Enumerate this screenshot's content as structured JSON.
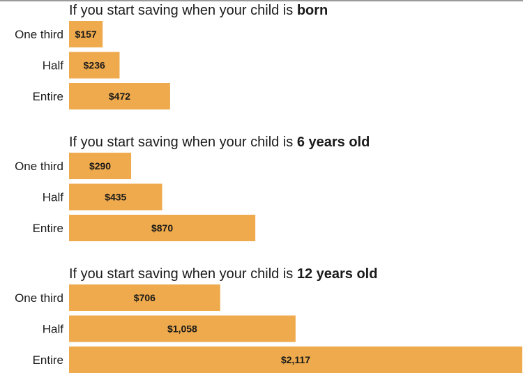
{
  "colors": {
    "bar": "#eeaa4c",
    "text": "#1a1a1a"
  },
  "chart_data": [
    {
      "type": "bar",
      "orientation": "horizontal",
      "title_prefix": "If you start saving when your child is ",
      "title_emphasis": "born",
      "categories": [
        "One third",
        "Half",
        "Entire"
      ],
      "values": [
        157,
        236,
        472
      ],
      "value_labels": [
        "$157",
        "$236",
        "$472"
      ]
    },
    {
      "type": "bar",
      "orientation": "horizontal",
      "title_prefix": "If you start saving when your child is ",
      "title_emphasis": "6 years old",
      "categories": [
        "One third",
        "Half",
        "Entire"
      ],
      "values": [
        290,
        435,
        870
      ],
      "value_labels": [
        "$290",
        "$435",
        "$870"
      ]
    },
    {
      "type": "bar",
      "orientation": "horizontal",
      "title_prefix": "If you start saving when your child is ",
      "title_emphasis": "12 years old",
      "categories": [
        "One third",
        "Half",
        "Entire"
      ],
      "values": [
        706,
        1058,
        2117
      ],
      "value_labels": [
        "$706",
        "$1,058",
        "$2,117"
      ]
    }
  ]
}
